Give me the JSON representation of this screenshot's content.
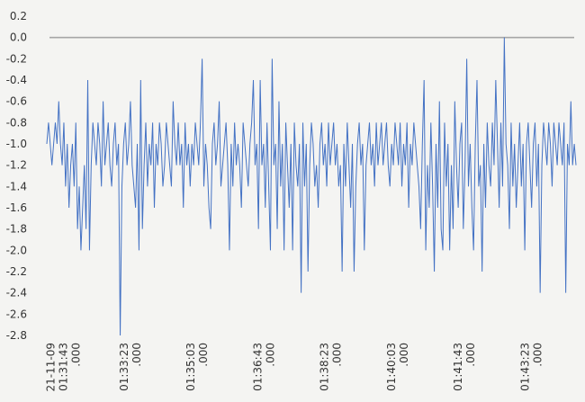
{
  "chart_data": {
    "type": "line",
    "title": "",
    "xlabel": "",
    "ylabel": "",
    "ylim": [
      -2.8,
      0.2
    ],
    "yticks": [
      0.2,
      0.0,
      -0.2,
      -0.4,
      -0.6,
      -0.8,
      -1.0,
      -1.2,
      -1.4,
      -1.6,
      -1.8,
      -2.0,
      -2.2,
      -2.4,
      -2.6,
      -2.8
    ],
    "ytick_labels": [
      "0.2",
      "0.0",
      "-0.2",
      "-0.4",
      "-0.6",
      "-0.8",
      "-1.0",
      "-1.2",
      "-1.4",
      "-1.6",
      "-1.8",
      "-2.0",
      "-2.2",
      "-2.4",
      "-2.6",
      "-2.8"
    ],
    "x_tick_labels": [
      [
        "21-11-09",
        "01:31:43",
        ".000"
      ],
      [
        "01:33:23",
        ".000"
      ],
      [
        "01:35:03",
        ".000"
      ],
      [
        "01:36:43",
        ".000"
      ],
      [
        "01:38:23",
        ".000"
      ],
      [
        "01:40:03",
        ".000"
      ],
      [
        "01:41:43",
        ".000"
      ],
      [
        "01:43:23",
        ".000"
      ]
    ],
    "x_tick_times": [
      "01:31:43",
      "01:33:23",
      "01:35:03",
      "01:36:43",
      "01:38:23",
      "01:40:03",
      "01:41:43",
      "01:43:23"
    ],
    "x_range_times": [
      "01:31:18",
      "01:44:30"
    ],
    "reference_line": 0.0,
    "grid": false,
    "legend": "none",
    "series_color": "#4472c4",
    "series": [
      {
        "values": [
          -1.0,
          -0.8,
          -1.0,
          -1.2,
          -1.0,
          -0.8,
          -1.0,
          -0.6,
          -1.0,
          -1.2,
          -0.8,
          -1.4,
          -1.0,
          -1.6,
          -1.2,
          -1.0,
          -1.4,
          -0.8,
          -1.8,
          -1.4,
          -2.0,
          -1.6,
          -1.2,
          -1.8,
          -0.4,
          -2.0,
          -1.2,
          -0.8,
          -1.0,
          -1.2,
          -0.8,
          -1.0,
          -1.4,
          -0.6,
          -1.2,
          -1.0,
          -0.8,
          -1.2,
          -1.4,
          -1.0,
          -0.8,
          -1.2,
          -1.0,
          -2.8,
          -1.4,
          -1.0,
          -0.8,
          -1.2,
          -1.0,
          -0.6,
          -1.2,
          -1.4,
          -1.6,
          -1.0,
          -2.0,
          -0.4,
          -1.8,
          -1.2,
          -0.8,
          -1.4,
          -1.0,
          -1.2,
          -0.8,
          -1.6,
          -1.0,
          -1.2,
          -0.8,
          -1.0,
          -1.4,
          -1.2,
          -0.8,
          -1.0,
          -1.2,
          -1.4,
          -0.6,
          -1.0,
          -1.2,
          -0.8,
          -1.2,
          -1.0,
          -1.6,
          -0.8,
          -1.2,
          -1.0,
          -1.4,
          -1.0,
          -1.2,
          -0.8,
          -1.0,
          -1.2,
          -0.8,
          -0.2,
          -1.4,
          -1.0,
          -1.2,
          -1.6,
          -1.8,
          -1.0,
          -0.8,
          -1.2,
          -1.0,
          -0.6,
          -1.4,
          -1.2,
          -1.0,
          -0.8,
          -1.2,
          -2.0,
          -1.0,
          -1.4,
          -0.8,
          -1.2,
          -1.0,
          -1.2,
          -1.6,
          -0.8,
          -1.0,
          -1.2,
          -1.4,
          -1.0,
          -0.8,
          -0.4,
          -1.2,
          -1.0,
          -1.8,
          -0.4,
          -1.2,
          -1.0,
          -1.6,
          -0.8,
          -1.4,
          -2.0,
          -0.2,
          -1.2,
          -1.0,
          -1.8,
          -0.6,
          -1.4,
          -1.0,
          -2.0,
          -0.8,
          -1.2,
          -1.6,
          -1.0,
          -2.0,
          -0.8,
          -1.2,
          -1.4,
          -1.0,
          -2.4,
          -0.8,
          -1.4,
          -1.0,
          -2.2,
          -1.2,
          -0.8,
          -1.0,
          -1.4,
          -1.2,
          -1.6,
          -1.0,
          -0.8,
          -1.2,
          -1.0,
          -1.4,
          -0.8,
          -1.2,
          -1.0,
          -0.8,
          -1.2,
          -1.0,
          -1.4,
          -1.2,
          -2.2,
          -1.0,
          -1.4,
          -0.8,
          -1.2,
          -1.6,
          -1.0,
          -2.2,
          -1.4,
          -1.0,
          -0.8,
          -1.2,
          -1.0,
          -2.0,
          -1.2,
          -1.0,
          -0.8,
          -1.2,
          -1.0,
          -1.4,
          -0.8,
          -1.2,
          -1.0,
          -0.8,
          -1.2,
          -1.0,
          -0.8,
          -1.2,
          -1.4,
          -1.0,
          -1.2,
          -0.8,
          -1.0,
          -1.2,
          -0.8,
          -1.4,
          -1.0,
          -1.2,
          -0.8,
          -1.6,
          -1.0,
          -1.2,
          -0.8,
          -1.0,
          -1.2,
          -1.4,
          -1.8,
          -1.0,
          -0.4,
          -2.0,
          -1.2,
          -1.6,
          -0.8,
          -1.4,
          -2.2,
          -1.0,
          -1.6,
          -0.6,
          -1.8,
          -2.0,
          -0.8,
          -1.4,
          -1.0,
          -2.0,
          -1.2,
          -1.8,
          -0.6,
          -1.2,
          -1.6,
          -1.0,
          -0.8,
          -1.8,
          -1.2,
          -0.2,
          -1.4,
          -1.0,
          -1.6,
          -2.0,
          -1.0,
          -0.4,
          -1.4,
          -1.2,
          -2.2,
          -1.0,
          -1.6,
          -0.8,
          -1.2,
          -1.4,
          -0.8,
          -1.2,
          -0.4,
          -1.0,
          -1.6,
          -0.8,
          -1.4,
          -0.0,
          -1.0,
          -1.2,
          -1.8,
          -0.8,
          -1.4,
          -1.0,
          -1.6,
          -1.2,
          -0.8,
          -1.4,
          -1.0,
          -2.0,
          -1.0,
          -0.8,
          -1.2,
          -1.6,
          -1.0,
          -0.8,
          -1.4,
          -1.0,
          -2.4,
          -1.2,
          -0.8,
          -1.0,
          -1.2,
          -0.8,
          -1.0,
          -1.4,
          -0.8,
          -1.0,
          -1.2,
          -0.8,
          -1.0,
          -1.2,
          -0.8,
          -2.4,
          -1.0,
          -1.2,
          -0.6,
          -1.2,
          -1.0,
          -1.2
        ]
      }
    ]
  }
}
